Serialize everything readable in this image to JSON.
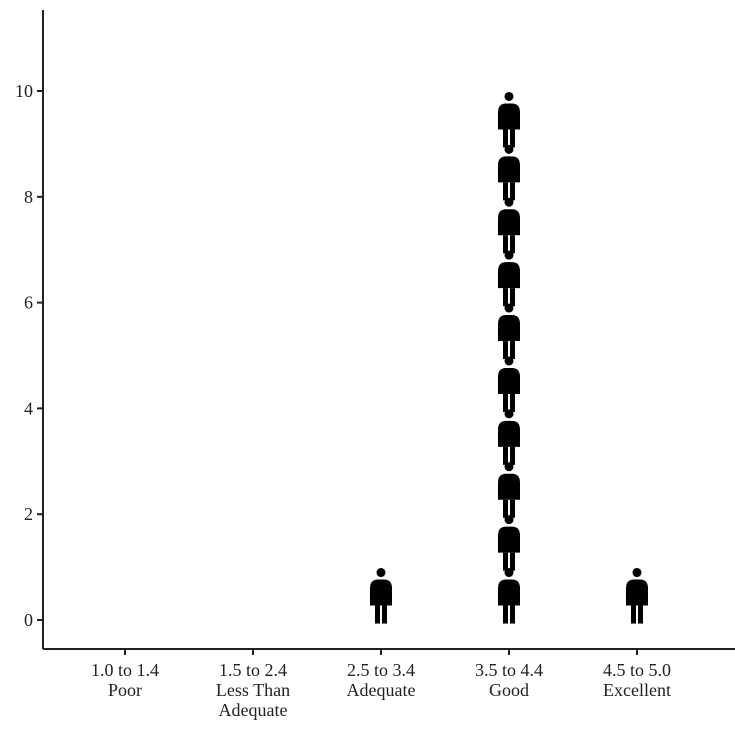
{
  "chart_data": {
    "type": "scatter",
    "title": "",
    "xlabel": "",
    "ylabel": "",
    "categories": [
      [
        "1.0 to 1.4",
        "Poor"
      ],
      [
        "1.5 to 2.4",
        "Less Than",
        "Adequate"
      ],
      [
        "2.5 to 3.4",
        "Adequate"
      ],
      [
        "3.5 to 4.4",
        "Good"
      ],
      [
        "4.5 to 5.0",
        "Excellent"
      ]
    ],
    "counts": [
      0,
      0,
      1,
      10,
      1
    ],
    "ylim": [
      -0.5,
      11
    ],
    "yticks": [
      0,
      2,
      4,
      6,
      8,
      10
    ],
    "grid": false,
    "marker": "person-icon",
    "marker_color": "#000000",
    "axis_color": "#222222"
  }
}
